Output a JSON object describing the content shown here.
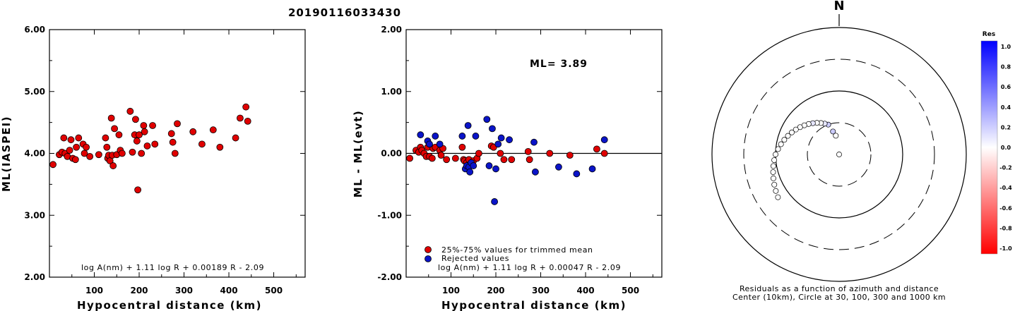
{
  "title": "20190116033430",
  "colors": {
    "trimmed": "#e00000",
    "rejected": "#0a14c8",
    "axis": "#000000",
    "background": "#ffffff"
  },
  "chart_data": [
    {
      "type": "scatter",
      "ylabel": "ML(IASPEI)",
      "xlabel": "Hypocentral distance (km)",
      "formula": "log A(nm) + 1.11 log R + 0.00189 R - 2.09",
      "xlim": [
        0,
        570
      ],
      "ylim": [
        2.0,
        6.0
      ],
      "xticks": [
        "100",
        "200",
        "300",
        "400",
        "500"
      ],
      "yticks": [
        "2.00",
        "3.00",
        "4.00",
        "5.00",
        "6.00"
      ],
      "series": [
        {
          "color": "#e00000",
          "points": [
            [
              8,
              3.82
            ],
            [
              22,
              3.98
            ],
            [
              28,
              4.02
            ],
            [
              32,
              4.25
            ],
            [
              35,
              4.0
            ],
            [
              40,
              3.95
            ],
            [
              45,
              4.05
            ],
            [
              48,
              4.22
            ],
            [
              52,
              3.92
            ],
            [
              58,
              3.9
            ],
            [
              60,
              4.1
            ],
            [
              65,
              4.25
            ],
            [
              75,
              4.15
            ],
            [
              78,
              4.0
            ],
            [
              82,
              4.1
            ],
            [
              90,
              3.95
            ],
            [
              110,
              3.98
            ],
            [
              125,
              4.25
            ],
            [
              128,
              4.1
            ],
            [
              130,
              3.92
            ],
            [
              132,
              3.97
            ],
            [
              135,
              3.88
            ],
            [
              138,
              4.57
            ],
            [
              140,
              3.97
            ],
            [
              142,
              3.8
            ],
            [
              145,
              4.4
            ],
            [
              150,
              3.98
            ],
            [
              155,
              4.3
            ],
            [
              158,
              4.05
            ],
            [
              162,
              4.0
            ],
            [
              180,
              4.68
            ],
            [
              185,
              4.02
            ],
            [
              190,
              4.3
            ],
            [
              192,
              4.55
            ],
            [
              195,
              4.2
            ],
            [
              197,
              3.41
            ],
            [
              200,
              4.3
            ],
            [
              205,
              4.0
            ],
            [
              210,
              4.45
            ],
            [
              212,
              4.35
            ],
            [
              218,
              4.12
            ],
            [
              230,
              4.45
            ],
            [
              235,
              4.15
            ],
            [
              272,
              4.32
            ],
            [
              275,
              4.18
            ],
            [
              280,
              4.0
            ],
            [
              285,
              4.48
            ],
            [
              320,
              4.35
            ],
            [
              340,
              4.15
            ],
            [
              365,
              4.38
            ],
            [
              380,
              4.1
            ],
            [
              415,
              4.25
            ],
            [
              425,
              4.57
            ],
            [
              438,
              4.75
            ],
            [
              442,
              4.52
            ]
          ]
        }
      ]
    },
    {
      "type": "scatter",
      "ylabel": "ML - ML(evt)",
      "xlabel": "Hypocentral distance (km)",
      "formula": "log A(nm) + 1.11 log R + 0.00047 R - 2.09",
      "annotation": "ML= 3.89",
      "xlim": [
        0,
        570
      ],
      "ylim": [
        -2.0,
        2.0
      ],
      "xticks": [
        "100",
        "200",
        "300",
        "400",
        "500"
      ],
      "yticks": [
        "-2.00",
        "-1.00",
        "0.00",
        "1.00",
        "2.00"
      ],
      "legend": [
        {
          "label": "25%-75% values for trimmed mean",
          "color": "#e00000"
        },
        {
          "label": "Rejected values",
          "color": "#0a14c8"
        }
      ],
      "series": [
        {
          "name": "25%-75% values for trimmed mean",
          "color": "#e00000",
          "points": [
            [
              8,
              -0.08
            ],
            [
              22,
              0.05
            ],
            [
              28,
              0.02
            ],
            [
              32,
              0.1
            ],
            [
              35,
              0.05
            ],
            [
              40,
              0.0
            ],
            [
              45,
              -0.05
            ],
            [
              48,
              0.1
            ],
            [
              52,
              -0.05
            ],
            [
              58,
              -0.08
            ],
            [
              60,
              0.08
            ],
            [
              65,
              0.1
            ],
            [
              75,
              0.05
            ],
            [
              78,
              -0.03
            ],
            [
              82,
              0.08
            ],
            [
              90,
              -0.1
            ],
            [
              110,
              -0.08
            ],
            [
              125,
              0.1
            ],
            [
              128,
              -0.1
            ],
            [
              130,
              -0.12
            ],
            [
              135,
              -0.15
            ],
            [
              140,
              -0.1
            ],
            [
              150,
              -0.12
            ],
            [
              158,
              -0.08
            ],
            [
              162,
              0.0
            ],
            [
              190,
              0.12
            ],
            [
              195,
              0.1
            ],
            [
              210,
              0.0
            ],
            [
              218,
              -0.1
            ],
            [
              235,
              -0.1
            ],
            [
              272,
              0.03
            ],
            [
              275,
              -0.1
            ],
            [
              320,
              0.0
            ],
            [
              365,
              -0.03
            ],
            [
              425,
              0.07
            ],
            [
              442,
              0.0
            ]
          ]
        },
        {
          "name": "Rejected values",
          "color": "#0a14c8",
          "points": [
            [
              32,
              0.3
            ],
            [
              48,
              0.2
            ],
            [
              52,
              0.15
            ],
            [
              65,
              0.28
            ],
            [
              75,
              0.15
            ],
            [
              125,
              0.28
            ],
            [
              132,
              -0.25
            ],
            [
              135,
              -0.2
            ],
            [
              138,
              0.45
            ],
            [
              140,
              -0.22
            ],
            [
              142,
              -0.3
            ],
            [
              145,
              -0.15
            ],
            [
              150,
              -0.2
            ],
            [
              155,
              0.28
            ],
            [
              180,
              0.55
            ],
            [
              185,
              -0.2
            ],
            [
              192,
              0.4
            ],
            [
              197,
              -0.78
            ],
            [
              200,
              -0.25
            ],
            [
              205,
              0.15
            ],
            [
              212,
              0.25
            ],
            [
              230,
              0.22
            ],
            [
              285,
              0.18
            ],
            [
              288,
              -0.3
            ],
            [
              340,
              -0.22
            ],
            [
              380,
              -0.33
            ],
            [
              415,
              -0.25
            ],
            [
              442,
              0.22
            ]
          ]
        }
      ]
    },
    {
      "type": "scatter",
      "north_label": "N",
      "caption_line1": "Residuals as a function of azimuth and distance",
      "caption_line2": "Center (10km), Circle at 30, 100, 300 and 1000 km",
      "colorbar": {
        "title": "Res",
        "ticks": [
          "1.0",
          "0.8",
          "0.6",
          "0.4",
          "0.2",
          "0.0",
          "-0.2",
          "-0.4",
          "-0.6",
          "-0.8",
          "-1.0"
        ],
        "max_color": "#0000ff",
        "mid_color": "#ffffff",
        "min_color": "#ff0000"
      },
      "polar_points": [
        {
          "az": 345,
          "dist": 25,
          "res": 0.2
        },
        {
          "az": 350,
          "dist": 22,
          "res": 0.0
        },
        {
          "az": 358,
          "dist": 10,
          "res": 0.0
        },
        {
          "az": 340,
          "dist": 30,
          "res": 0.2
        },
        {
          "az": 335,
          "dist": 35,
          "res": 0.1
        },
        {
          "az": 330,
          "dist": 40,
          "res": 0.0
        },
        {
          "az": 325,
          "dist": 45,
          "res": 0.0
        },
        {
          "az": 320,
          "dist": 50,
          "res": 0.1
        },
        {
          "az": 315,
          "dist": 55,
          "res": 0.0
        },
        {
          "az": 310,
          "dist": 60,
          "res": 0.0
        },
        {
          "az": 305,
          "dist": 65,
          "res": 0.0
        },
        {
          "az": 300,
          "dist": 70,
          "res": 0.0
        },
        {
          "az": 295,
          "dist": 75,
          "res": 0.0
        },
        {
          "az": 290,
          "dist": 80,
          "res": 0.0
        },
        {
          "az": 285,
          "dist": 85,
          "res": 0.0
        },
        {
          "az": 280,
          "dist": 90,
          "res": 0.0
        },
        {
          "az": 275,
          "dist": 95,
          "res": 0.0
        },
        {
          "az": 270,
          "dist": 100,
          "res": 0.0
        },
        {
          "az": 265,
          "dist": 110,
          "res": 0.0
        },
        {
          "az": 260,
          "dist": 120,
          "res": 0.0
        },
        {
          "az": 255,
          "dist": 130,
          "res": 0.0
        },
        {
          "az": 250,
          "dist": 140,
          "res": 0.0
        },
        {
          "az": 245,
          "dist": 150,
          "res": 0.0
        },
        {
          "az": 240,
          "dist": 160,
          "res": 0.0
        },
        {
          "az": 235,
          "dist": 170,
          "res": 0.0
        }
      ]
    }
  ]
}
